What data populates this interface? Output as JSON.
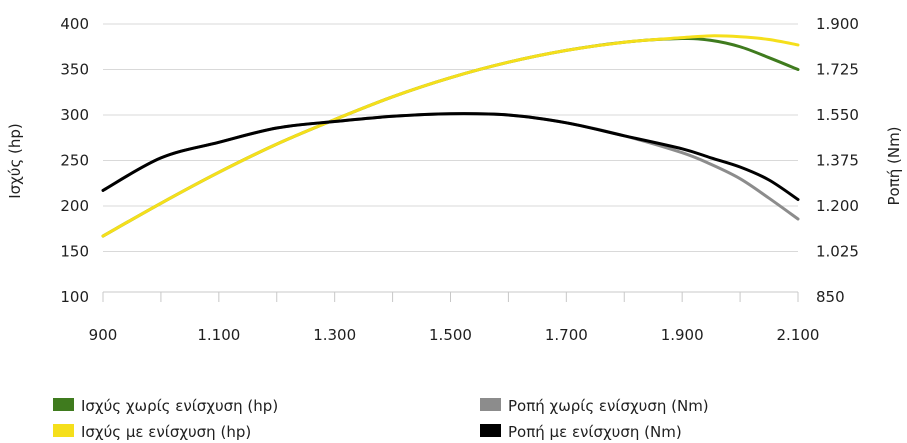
{
  "chart_data": {
    "type": "line",
    "title": "",
    "xlabel": "",
    "y_left_label": "Ισχύς (hp)",
    "y_right_label": "Ροπή (Nm)",
    "x_ticks": [
      "900",
      "1.100",
      "1.300",
      "1.500",
      "1.700",
      "1.900",
      "2.100"
    ],
    "y_left_ticks": [
      "100",
      "150",
      "200",
      "250",
      "300",
      "350",
      "400"
    ],
    "y_right_ticks": [
      "850",
      "1.025",
      "1.200",
      "1.375",
      "1.550",
      "1.725",
      "1.900"
    ],
    "xlim": [
      900,
      2100
    ],
    "y_left_lim": [
      100,
      400
    ],
    "y_right_lim": [
      850,
      1900
    ],
    "grid": true,
    "legend_position": "bottom",
    "series": [
      {
        "name": "Ισχύς χωρίς ενίσχυση (hp)",
        "axis": "left",
        "color": "#3f7b1e",
        "x": [
          900,
          1000,
          1100,
          1200,
          1300,
          1400,
          1500,
          1600,
          1700,
          1800,
          1900,
          1950,
          2000,
          2050,
          2100
        ],
        "values": [
          167,
          203,
          237,
          268,
          295,
          320,
          341,
          358,
          371,
          380,
          384,
          382,
          375,
          363,
          350
        ]
      },
      {
        "name": "Ισχύς με ενίσχυση (hp)",
        "axis": "left",
        "color": "#f5df1b",
        "x": [
          900,
          1000,
          1100,
          1200,
          1300,
          1400,
          1500,
          1600,
          1700,
          1800,
          1900,
          1950,
          2000,
          2050,
          2100
        ],
        "values": [
          167,
          203,
          237,
          268,
          295,
          320,
          341,
          358,
          371,
          380,
          385,
          387,
          386,
          383,
          377
        ]
      },
      {
        "name": "Ροπή χωρίς ενίσχυση (Nm)",
        "axis": "right",
        "color": "#8c8c8c",
        "x": [
          900,
          1000,
          1100,
          1200,
          1300,
          1400,
          1500,
          1600,
          1700,
          1800,
          1900,
          1950,
          2000,
          2050,
          2100
        ],
        "values": [
          1260,
          1385,
          1445,
          1500,
          1525,
          1545,
          1555,
          1550,
          1520,
          1470,
          1405,
          1360,
          1305,
          1230,
          1150
        ]
      },
      {
        "name": "Ροπή με ενίσχυση (Nm)",
        "axis": "right",
        "color": "#000000",
        "x": [
          900,
          1000,
          1100,
          1200,
          1300,
          1400,
          1500,
          1600,
          1700,
          1800,
          1900,
          1950,
          2000,
          2050,
          2100
        ],
        "values": [
          1260,
          1385,
          1445,
          1500,
          1525,
          1545,
          1555,
          1550,
          1520,
          1470,
          1420,
          1385,
          1350,
          1300,
          1225
        ]
      }
    ]
  }
}
